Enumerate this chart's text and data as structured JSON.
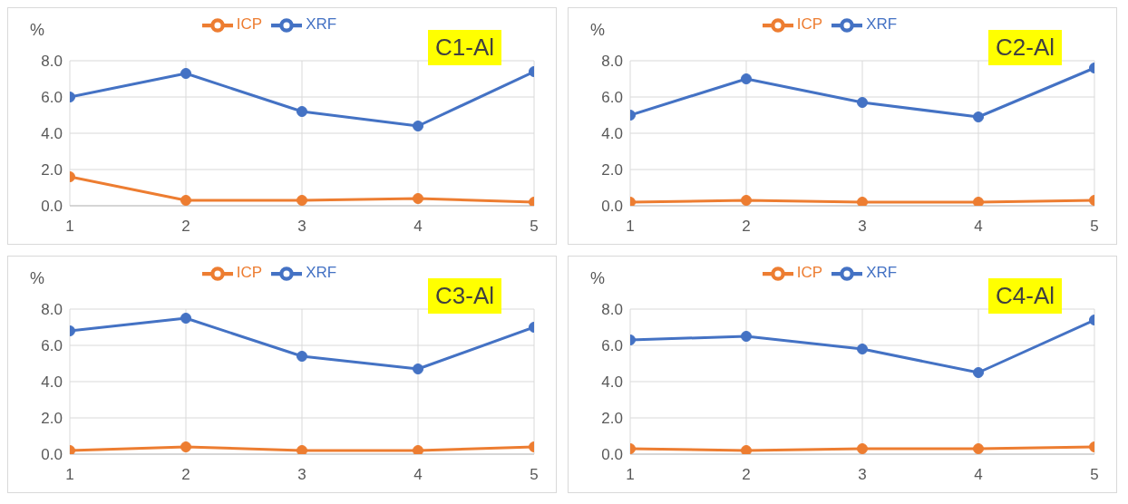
{
  "chart_data": [
    {
      "type": "line",
      "title": "C1-Al",
      "ylabel": "%",
      "categories": [
        "1",
        "2",
        "3",
        "4",
        "5"
      ],
      "series": [
        {
          "name": "XRF",
          "color": "#4472c4",
          "values": [
            6.0,
            7.3,
            5.2,
            4.4,
            7.4
          ]
        },
        {
          "name": "ICP",
          "color": "#ed7d31",
          "values": [
            1.6,
            0.3,
            0.3,
            0.4,
            0.2
          ]
        }
      ],
      "ylim": [
        0,
        8
      ],
      "yticks": [
        {
          "value": 0,
          "label": "0.0"
        },
        {
          "value": 2,
          "label": "2.0"
        },
        {
          "value": 4,
          "label": "4.0"
        },
        {
          "value": 6,
          "label": "6.0"
        },
        {
          "value": 8,
          "label": "8.0"
        }
      ],
      "grid": true,
      "legend": "top",
      "marker": "circle",
      "line_style": "solid"
    },
    {
      "type": "line",
      "title": "C2-Al",
      "ylabel": "%",
      "categories": [
        "1",
        "2",
        "3",
        "4",
        "5"
      ],
      "series": [
        {
          "name": "XRF",
          "color": "#4472c4",
          "values": [
            5.0,
            7.0,
            5.7,
            4.9,
            7.6
          ]
        },
        {
          "name": "ICP",
          "color": "#ed7d31",
          "values": [
            0.2,
            0.3,
            0.2,
            0.2,
            0.3
          ]
        }
      ],
      "ylim": [
        0,
        8
      ],
      "yticks": [
        {
          "value": 0,
          "label": "0.0"
        },
        {
          "value": 2,
          "label": "2.0"
        },
        {
          "value": 4,
          "label": "4.0"
        },
        {
          "value": 6,
          "label": "6.0"
        },
        {
          "value": 8,
          "label": "8.0"
        }
      ],
      "grid": true,
      "legend": "top",
      "marker": "circle",
      "line_style": "solid"
    },
    {
      "type": "line",
      "title": "C3-Al",
      "ylabel": "%",
      "categories": [
        "1",
        "2",
        "3",
        "4",
        "5"
      ],
      "series": [
        {
          "name": "XRF",
          "color": "#4472c4",
          "values": [
            6.8,
            7.5,
            5.4,
            4.7,
            7.0
          ]
        },
        {
          "name": "ICP",
          "color": "#ed7d31",
          "values": [
            0.2,
            0.4,
            0.2,
            0.2,
            0.4
          ]
        }
      ],
      "ylim": [
        0,
        8
      ],
      "yticks": [
        {
          "value": 0,
          "label": "0.0"
        },
        {
          "value": 2,
          "label": "2.0"
        },
        {
          "value": 4,
          "label": "4.0"
        },
        {
          "value": 6,
          "label": "6.0"
        },
        {
          "value": 8,
          "label": "8.0"
        }
      ],
      "grid": true,
      "legend": "top",
      "marker": "circle",
      "line_style": "solid"
    },
    {
      "type": "line",
      "title": "C4-Al",
      "ylabel": "%",
      "categories": [
        "1",
        "2",
        "3",
        "4",
        "5"
      ],
      "series": [
        {
          "name": "XRF",
          "color": "#4472c4",
          "values": [
            6.3,
            6.5,
            5.8,
            4.5,
            7.4
          ]
        },
        {
          "name": "ICP",
          "color": "#ed7d31",
          "values": [
            0.3,
            0.2,
            0.3,
            0.3,
            0.4
          ]
        }
      ],
      "ylim": [
        0,
        8
      ],
      "yticks": [
        {
          "value": 0,
          "label": "0.0"
        },
        {
          "value": 2,
          "label": "2.0"
        },
        {
          "value": 4,
          "label": "4.0"
        },
        {
          "value": 6,
          "label": "6.0"
        },
        {
          "value": 8,
          "label": "8.0"
        }
      ],
      "grid": true,
      "legend": "top",
      "marker": "circle",
      "line_style": "solid"
    }
  ]
}
